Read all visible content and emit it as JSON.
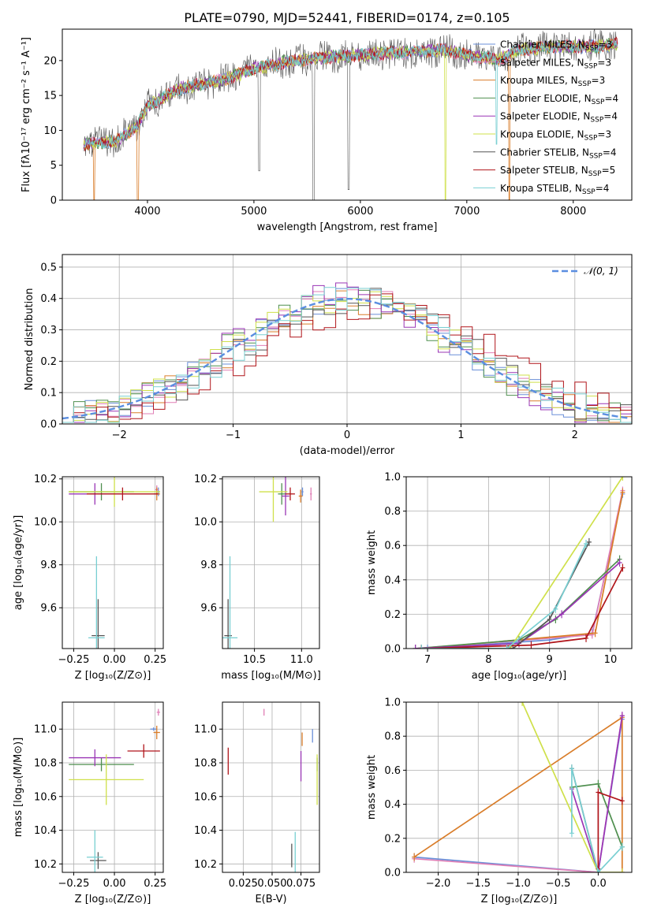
{
  "colors": {
    "Chabrier MILES": "#6a8fd8",
    "Salpeter MILES": "#e07fb6",
    "Kroupa MILES": "#d97d2a",
    "Chabrier ELODIE": "#4f8f4f",
    "Salpeter ELODIE": "#9a35b5",
    "Kroupa ELODIE": "#cfe04a",
    "Chabrier STELIB": "#555555",
    "Salpeter STELIB": "#b0151a",
    "Kroupa STELIB": "#78cfd2",
    "gaussian": "#5b8ee0"
  },
  "chart_data": [
    {
      "id": "spectrum",
      "type": "line",
      "title": "PLATE=0790, MJD=52441, FIBERID=0174, z=0.105",
      "xlabel": "wavelength [Angstrom, rest frame]",
      "ylabel": "Flux [fλ10⁻¹⁷ erg cm⁻² s⁻¹ A⁻¹]",
      "xlim": [
        3200,
        8550
      ],
      "ylim": [
        0,
        24.5
      ],
      "xticks": [
        4000,
        5000,
        6000,
        7000,
        8000
      ],
      "yticks": [
        0,
        5,
        10,
        15,
        20
      ],
      "grid": false,
      "legend_position": "right",
      "legend": [
        {
          "name": "Chabrier MILES",
          "label_main": "Chabrier MILES, N",
          "label_sub": "SSP",
          "label_tail": "=3"
        },
        {
          "name": "Salpeter MILES",
          "label_main": "Salpeter MILES, N",
          "label_sub": "SSP",
          "label_tail": "=3"
        },
        {
          "name": "Kroupa MILES",
          "label_main": "Kroupa MILES, N",
          "label_sub": "SSP",
          "label_tail": "=3"
        },
        {
          "name": "Chabrier ELODIE",
          "label_main": "Chabrier ELODIE, N",
          "label_sub": "SSP",
          "label_tail": "=4"
        },
        {
          "name": "Salpeter ELODIE",
          "label_main": "Salpeter ELODIE, N",
          "label_sub": "SSP",
          "label_tail": "=4"
        },
        {
          "name": "Kroupa ELODIE",
          "label_main": "Kroupa ELODIE, N",
          "label_sub": "SSP",
          "label_tail": "=3"
        },
        {
          "name": "Chabrier STELIB",
          "label_main": "Chabrier STELIB, N",
          "label_sub": "SSP",
          "label_tail": "=4"
        },
        {
          "name": "Salpeter STELIB",
          "label_main": "Salpeter STELIB, N",
          "label_sub": "SSP",
          "label_tail": "=5"
        },
        {
          "name": "Kroupa STELIB",
          "label_main": "Kroupa STELIB, N",
          "label_sub": "SSP",
          "label_tail": "=4"
        }
      ],
      "continuum": [
        [
          3400,
          8.0
        ],
        [
          3700,
          8.5
        ],
        [
          3900,
          10.5
        ],
        [
          4000,
          13.5
        ],
        [
          4300,
          16.0
        ],
        [
          4700,
          17.2
        ],
        [
          5000,
          18.8
        ],
        [
          5300,
          19.8
        ],
        [
          5700,
          20.5
        ],
        [
          6200,
          21.0
        ],
        [
          6500,
          21.3
        ],
        [
          6800,
          21.5
        ],
        [
          7100,
          20.5
        ],
        [
          7300,
          20.2
        ],
        [
          7500,
          21.5
        ],
        [
          7800,
          22.0
        ],
        [
          8200,
          22.0
        ],
        [
          8400,
          22.3
        ]
      ],
      "dips": [
        [
          3500,
          0
        ],
        [
          3910,
          0
        ],
        [
          5050,
          4.2
        ],
        [
          5560,
          0
        ],
        [
          5890,
          1.5
        ],
        [
          6800,
          0
        ],
        [
          7400,
          0
        ],
        [
          7280,
          8.0
        ]
      ]
    },
    {
      "id": "residuals",
      "type": "histogram",
      "xlabel": "(data-model)/error",
      "ylabel": "Normed distribution",
      "xlim": [
        -2.5,
        2.5
      ],
      "ylim": [
        0,
        0.54
      ],
      "xticks": [
        -2,
        -1,
        0,
        1,
        2
      ],
      "yticks": [
        0.0,
        0.1,
        0.2,
        0.3,
        0.4,
        0.5
      ],
      "grid": true,
      "legend_position": "top-right",
      "legend": [
        "𝒩(0, 1)"
      ],
      "gaussian": {
        "mean": 0.0,
        "sigma": 1.0
      }
    },
    {
      "id": "age_vs_Z",
      "type": "errorbar",
      "xlabel": "Z [log₁₀(Z/Z⊙)]",
      "ylabel": "age  [log₁₀(age/yr)]",
      "xlim": [
        -0.32,
        0.3
      ],
      "ylim": [
        9.41,
        10.21
      ],
      "xticks": [
        -0.25,
        0.0,
        0.25
      ],
      "yticks": [
        9.6,
        9.8,
        10.0,
        10.2
      ],
      "grid": true,
      "points": [
        {
          "name": "Chabrier MILES",
          "x": 0.27,
          "y": 10.14,
          "xerr": 0.01,
          "yerr": 0.02
        },
        {
          "name": "Salpeter MILES",
          "x": 0.26,
          "y": 10.15,
          "xerr": 0.01,
          "yerr": 0.02
        },
        {
          "name": "Kroupa MILES",
          "x": 0.26,
          "y": 10.13,
          "xerr": 0.02,
          "yerr": 0.03
        },
        {
          "name": "Chabrier ELODIE",
          "x": -0.08,
          "y": 10.14,
          "xerr": 0.2,
          "yerr": 0.04
        },
        {
          "name": "Salpeter ELODIE",
          "x": -0.12,
          "y": 10.13,
          "xerr": 0.16,
          "yerr": 0.05
        },
        {
          "name": "Kroupa ELODIE",
          "x": 0.0,
          "y": 10.14,
          "xerr": 0.28,
          "yerr": 0.07
        },
        {
          "name": "Chabrier STELIB",
          "x": -0.1,
          "y": 9.47,
          "xerr": 0.04,
          "yerr": 0.17
        },
        {
          "name": "Salpeter STELIB",
          "x": 0.05,
          "y": 10.13,
          "xerr": 0.22,
          "yerr": 0.03
        },
        {
          "name": "Kroupa STELIB",
          "x": -0.11,
          "y": 9.46,
          "xerr": 0.05,
          "yerr": 0.38
        }
      ]
    },
    {
      "id": "age_vs_mass",
      "type": "errorbar",
      "xlabel": "mass [log₁₀(M/M⊙)]",
      "ylabel": "",
      "xlim": [
        10.16,
        11.19
      ],
      "ylim": [
        9.41,
        10.21
      ],
      "xticks": [
        10.5,
        11.0
      ],
      "yticks": [
        9.6,
        9.8,
        10.0,
        10.2
      ],
      "grid": true,
      "points": [
        {
          "name": "Chabrier MILES",
          "x": 11.01,
          "y": 10.14,
          "xerr": 0.01,
          "yerr": 0.02
        },
        {
          "name": "Salpeter MILES",
          "x": 11.1,
          "y": 10.13,
          "xerr": 0.01,
          "yerr": 0.03
        },
        {
          "name": "Kroupa MILES",
          "x": 10.99,
          "y": 10.12,
          "xerr": 0.02,
          "yerr": 0.03
        },
        {
          "name": "Chabrier ELODIE",
          "x": 10.79,
          "y": 10.13,
          "xerr": 0.04,
          "yerr": 0.05
        },
        {
          "name": "Salpeter ELODIE",
          "x": 10.83,
          "y": 10.12,
          "xerr": 0.04,
          "yerr": 0.09
        },
        {
          "name": "Kroupa ELODIE",
          "x": 10.7,
          "y": 10.14,
          "xerr": 0.15,
          "yerr": 0.14
        },
        {
          "name": "Chabrier STELIB",
          "x": 10.22,
          "y": 9.47,
          "xerr": 0.04,
          "yerr": 0.17
        },
        {
          "name": "Salpeter STELIB",
          "x": 10.88,
          "y": 10.13,
          "xerr": 0.05,
          "yerr": 0.03
        },
        {
          "name": "Kroupa STELIB",
          "x": 10.24,
          "y": 9.46,
          "xerr": 0.08,
          "yerr": 0.38
        }
      ]
    },
    {
      "id": "weight_vs_age",
      "type": "line",
      "xlabel": "age  [log₁₀(age/yr)]",
      "ylabel": "mass weight",
      "xlim": [
        6.65,
        10.35
      ],
      "ylim": [
        0,
        1.0
      ],
      "xticks": [
        7,
        8,
        9,
        10
      ],
      "yticks": [
        0.0,
        0.2,
        0.4,
        0.6,
        0.8,
        1.0
      ],
      "grid": true,
      "series": [
        {
          "name": "Chabrier MILES",
          "x": [
            7.0,
            9.0,
            9.7,
            10.2
          ],
          "y": [
            0.0,
            0.05,
            0.09,
            0.9
          ]
        },
        {
          "name": "Salpeter MILES",
          "x": [
            6.8,
            9.7,
            10.2
          ],
          "y": [
            0.0,
            0.08,
            0.92
          ]
        },
        {
          "name": "Kroupa MILES",
          "x": [
            6.9,
            9.75,
            10.2
          ],
          "y": [
            0.0,
            0.09,
            0.91
          ]
        },
        {
          "name": "Chabrier ELODIE",
          "x": [
            6.8,
            8.5,
            9.1,
            10.15
          ],
          "y": [
            0.0,
            0.05,
            0.17,
            0.52
          ]
        },
        {
          "name": "Salpeter ELODIE",
          "x": [
            6.8,
            8.5,
            9.2,
            10.15
          ],
          "y": [
            0.0,
            0.03,
            0.2,
            0.5
          ]
        },
        {
          "name": "Kroupa ELODIE",
          "x": [
            6.9,
            8.35,
            10.2
          ],
          "y": [
            0.0,
            0.0,
            1.0
          ]
        },
        {
          "name": "Chabrier STELIB",
          "x": [
            6.9,
            8.4,
            9.0,
            9.65
          ],
          "y": [
            0.0,
            0.0,
            0.17,
            0.62
          ]
        },
        {
          "name": "Salpeter STELIB",
          "x": [
            6.9,
            8.7,
            9.6,
            10.2
          ],
          "y": [
            0.0,
            0.02,
            0.06,
            0.47
          ]
        },
        {
          "name": "Kroupa STELIB",
          "x": [
            6.9,
            8.3,
            9.1,
            9.6
          ],
          "y": [
            0.0,
            0.0,
            0.23,
            0.61
          ]
        }
      ]
    },
    {
      "id": "mass_vs_Z",
      "type": "errorbar",
      "xlabel": "Z [log₁₀(Z/Z⊙)]",
      "ylabel": "mass [log₁₀(M/M⊙)]",
      "xlim": [
        -0.32,
        0.3
      ],
      "ylim": [
        10.15,
        11.16
      ],
      "xticks": [
        -0.25,
        0.0,
        0.25
      ],
      "yticks": [
        10.2,
        10.4,
        10.6,
        10.8,
        11.0
      ],
      "grid": true,
      "points": [
        {
          "name": "Chabrier MILES",
          "x": 0.24,
          "y": 11.0,
          "xerr": 0.02,
          "yerr": 0.01
        },
        {
          "name": "Salpeter MILES",
          "x": 0.27,
          "y": 11.1,
          "xerr": 0.01,
          "yerr": 0.02
        },
        {
          "name": "Kroupa MILES",
          "x": 0.26,
          "y": 10.98,
          "xerr": 0.02,
          "yerr": 0.04
        },
        {
          "name": "Chabrier ELODIE",
          "x": -0.08,
          "y": 10.79,
          "xerr": 0.2,
          "yerr": 0.04
        },
        {
          "name": "Salpeter ELODIE",
          "x": -0.12,
          "y": 10.83,
          "xerr": 0.16,
          "yerr": 0.05
        },
        {
          "name": "Kroupa ELODIE",
          "x": -0.05,
          "y": 10.7,
          "xerr": 0.23,
          "yerr": 0.15
        },
        {
          "name": "Chabrier STELIB",
          "x": -0.1,
          "y": 10.22,
          "xerr": 0.05,
          "yerr": 0.05
        },
        {
          "name": "Salpeter STELIB",
          "x": 0.18,
          "y": 10.87,
          "xerr": 0.1,
          "yerr": 0.04
        },
        {
          "name": "Kroupa STELIB",
          "x": -0.12,
          "y": 10.24,
          "xerr": 0.05,
          "yerr": 0.16
        }
      ]
    },
    {
      "id": "mass_vs_EBV",
      "type": "errorbar",
      "xlabel": "E(B-V)",
      "ylabel": "",
      "xlim": [
        0.007,
        0.091
      ],
      "ylim": [
        10.15,
        11.16
      ],
      "xticks": [
        0.025,
        0.05,
        0.075
      ],
      "xticklabels": [
        "0.025",
        "0.050",
        "0.075"
      ],
      "yticks": [
        10.2,
        10.4,
        10.6,
        10.8,
        11.0
      ],
      "grid": true,
      "points": [
        {
          "name": "Chabrier MILES",
          "x": 0.085,
          "y": 10.96,
          "xerr": 0.0,
          "yerr": 0.04
        },
        {
          "name": "Salpeter MILES",
          "x": 0.043,
          "y": 11.1,
          "xerr": 0.0,
          "yerr": 0.02
        },
        {
          "name": "Kroupa MILES",
          "x": 0.076,
          "y": 10.94,
          "xerr": 0.0,
          "yerr": 0.04
        },
        {
          "name": "Chabrier ELODIE",
          "x": 0.089,
          "y": 10.79,
          "xerr": 0.0,
          "yerr": 0.04
        },
        {
          "name": "Salpeter ELODIE",
          "x": 0.075,
          "y": 10.78,
          "xerr": 0.0,
          "yerr": 0.09
        },
        {
          "name": "Kroupa ELODIE",
          "x": 0.089,
          "y": 10.7,
          "xerr": 0.0,
          "yerr": 0.15
        },
        {
          "name": "Chabrier STELIB",
          "x": 0.067,
          "y": 10.25,
          "xerr": 0.0,
          "yerr": 0.07
        },
        {
          "name": "Salpeter STELIB",
          "x": 0.012,
          "y": 10.81,
          "xerr": 0.0,
          "yerr": 0.08
        },
        {
          "name": "Kroupa STELIB",
          "x": 0.07,
          "y": 10.26,
          "xerr": 0.0,
          "yerr": 0.13
        }
      ]
    },
    {
      "id": "weight_vs_Z",
      "type": "line",
      "xlabel": "Z [log₁₀(Z/Z⊙)]",
      "ylabel": "mass weight",
      "xlim": [
        -2.4,
        0.42
      ],
      "ylim": [
        0,
        1.0
      ],
      "xticks": [
        -2.0,
        -1.5,
        -1.0,
        -0.5,
        0.0
      ],
      "yticks": [
        0.0,
        0.2,
        0.4,
        0.6,
        0.8,
        1.0
      ],
      "grid": true,
      "series": [
        {
          "name": "Chabrier MILES",
          "x": [
            -2.3,
            0.0,
            0.3
          ],
          "y": [
            0.09,
            0.0,
            0.9
          ]
        },
        {
          "name": "Salpeter MILES",
          "x": [
            -2.3,
            0.0,
            0.3
          ],
          "y": [
            0.08,
            0.0,
            0.92
          ]
        },
        {
          "name": "Kroupa MILES",
          "x": [
            -2.3,
            0.3,
            0.3
          ],
          "y": [
            0.09,
            0.91,
            0.0
          ]
        },
        {
          "name": "Chabrier ELODIE",
          "x": [
            -0.33,
            0.0,
            0.3
          ],
          "y": [
            0.5,
            0.52,
            0.15
          ]
        },
        {
          "name": "Salpeter ELODIE",
          "x": [
            -0.33,
            0.0,
            0.3
          ],
          "y": [
            0.49,
            0.0,
            0.92
          ]
        },
        {
          "name": "Kroupa ELODIE",
          "x": [
            -0.95,
            0.0,
            0.3
          ],
          "y": [
            1.0,
            0.0,
            0.0
          ]
        },
        {
          "name": "Chabrier STELIB",
          "x": [
            -0.33,
            0.0
          ],
          "y": [
            0.61,
            0.0
          ]
        },
        {
          "name": "Salpeter STELIB",
          "x": [
            0.0,
            0.0,
            0.3
          ],
          "y": [
            0.02,
            0.47,
            0.42
          ]
        },
        {
          "name": "Kroupa STELIB",
          "x": [
            -0.33,
            -0.33,
            0.0,
            0.3
          ],
          "y": [
            0.23,
            0.61,
            0.0,
            0.15
          ]
        }
      ]
    }
  ]
}
